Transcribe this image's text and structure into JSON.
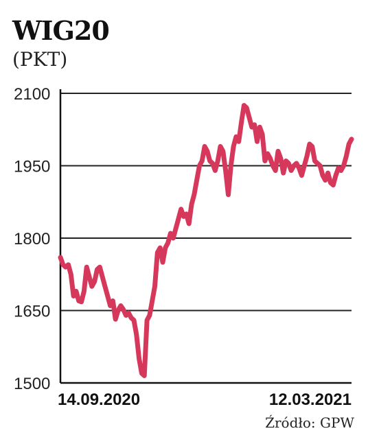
{
  "chart_data": {
    "type": "line",
    "title": "WIG20",
    "unit_label": "(PKT)",
    "source": "Źródło: GPW",
    "ylim": [
      1500,
      2100
    ],
    "yticks": [
      "2100",
      "1950",
      "1800",
      "1650",
      "1500"
    ],
    "x_start_label": "14.09.2020",
    "x_end_label": "12.03.2021",
    "grid": true,
    "series": [
      {
        "color": "#d6385b",
        "values": [
          1760,
          1745,
          1740,
          1745,
          1725,
          1680,
          1690,
          1670,
          1668,
          1690,
          1740,
          1720,
          1700,
          1710,
          1735,
          1740,
          1720,
          1700,
          1680,
          1660,
          1670,
          1632,
          1650,
          1660,
          1652,
          1640,
          1645,
          1635,
          1630,
          1600,
          1550,
          1520,
          1515,
          1630,
          1640,
          1670,
          1700,
          1770,
          1780,
          1750,
          1780,
          1790,
          1810,
          1800,
          1820,
          1840,
          1860,
          1845,
          1850,
          1830,
          1870,
          1890,
          1920,
          1950,
          1960,
          1990,
          1980,
          1960,
          1955,
          1940,
          1960,
          1990,
          1980,
          1940,
          1890,
          1950,
          1990,
          2010,
          2000,
          2040,
          2075,
          2070,
          2050,
          2030,
          2035,
          2000,
          2030,
          2015,
          1960,
          1975,
          1965,
          1950,
          1940,
          1980,
          1965,
          1935,
          1960,
          1955,
          1940,
          1950,
          1955,
          1945,
          1930,
          1950,
          1970,
          1995,
          1990,
          1960,
          1955,
          1950,
          1930,
          1920,
          1935,
          1915,
          1910,
          1930,
          1945,
          1940,
          1950,
          1970,
          1995,
          2005
        ]
      }
    ]
  }
}
